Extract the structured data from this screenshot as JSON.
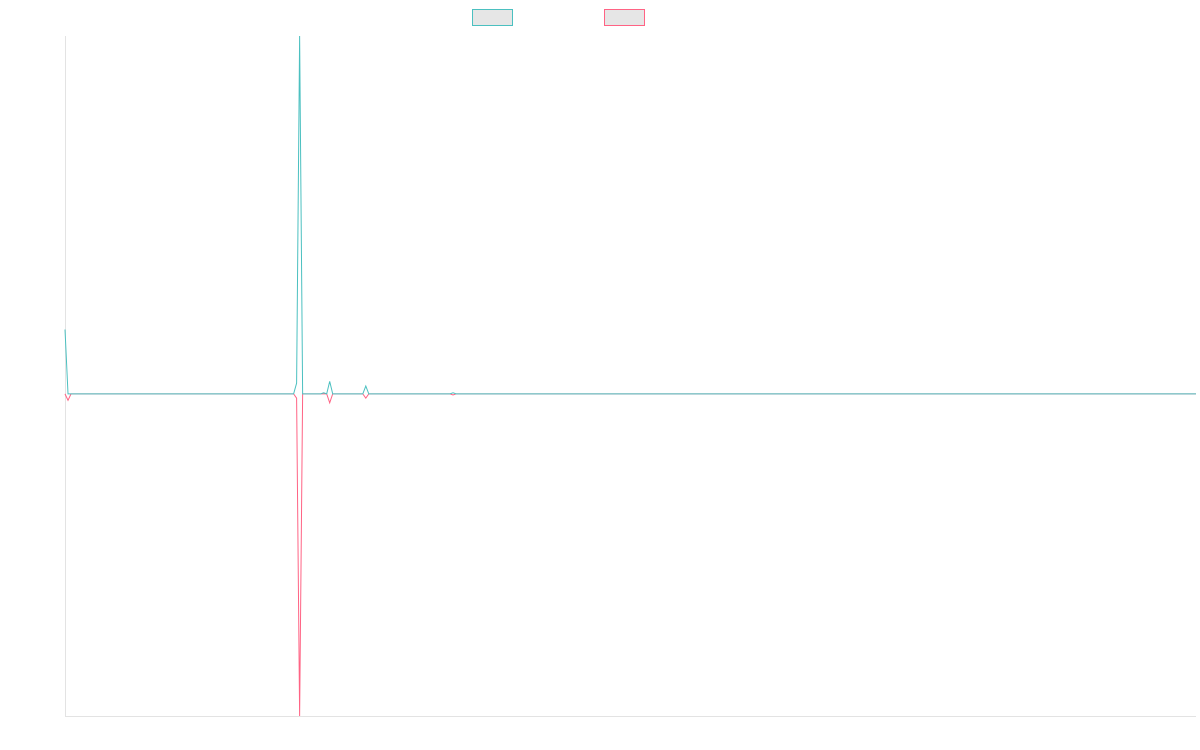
{
  "chart_data": {
    "type": "line",
    "title": "",
    "xlabel": "",
    "ylabel": "",
    "grid": false,
    "legend_position": "top-center",
    "x": [
      0,
      1,
      2,
      3,
      4,
      5,
      6,
      7,
      8,
      9,
      10,
      11,
      12,
      13,
      14,
      15,
      16,
      17,
      18,
      19,
      20,
      21,
      22,
      23,
      24,
      25,
      26,
      27,
      28,
      29,
      30,
      31,
      32,
      33,
      34,
      35,
      36,
      37,
      38,
      39,
      40,
      41,
      42,
      43,
      44,
      45,
      46,
      47,
      48,
      49,
      50,
      51,
      52,
      53,
      54,
      55,
      56,
      57,
      58,
      59,
      60,
      61,
      62,
      63,
      64,
      65,
      66,
      67,
      68,
      69,
      70,
      71,
      72,
      73,
      74,
      75,
      76,
      77,
      78,
      79,
      80,
      81,
      82,
      83,
      84,
      85,
      86,
      87,
      88,
      89,
      90,
      91,
      92,
      93,
      94,
      95,
      96,
      97,
      98,
      99,
      100,
      101,
      102,
      103,
      104,
      105,
      106,
      107,
      108,
      109,
      110,
      111,
      112,
      113,
      114,
      115,
      116,
      117,
      118,
      119,
      120,
      121,
      122,
      123,
      124,
      125,
      126,
      127,
      128,
      129,
      130,
      131,
      132,
      133,
      134,
      135,
      136,
      137,
      138,
      139,
      140,
      141,
      142,
      143,
      144,
      145,
      146,
      147,
      148,
      149,
      150,
      151,
      152,
      153,
      154,
      155,
      156,
      157,
      158,
      159,
      160,
      161,
      162,
      163,
      164,
      165,
      166,
      167,
      168,
      169,
      170,
      171,
      172,
      173,
      174,
      175,
      176,
      177,
      178,
      179,
      180,
      181,
      182,
      183,
      184,
      185,
      186,
      187,
      188,
      189,
      190,
      191,
      192,
      193,
      194,
      195,
      196,
      197,
      198,
      199,
      200,
      201,
      202,
      203,
      204,
      205,
      206,
      207,
      208,
      209,
      210,
      211,
      212,
      213,
      214,
      215,
      216,
      217,
      218,
      219,
      220,
      221,
      222,
      223,
      224,
      225,
      226,
      227,
      228,
      229,
      230,
      231,
      232,
      233,
      234,
      235,
      236,
      237,
      238,
      239,
      240,
      241,
      242,
      243,
      244,
      245,
      246,
      247,
      248,
      249,
      250,
      251,
      252,
      253,
      254,
      255,
      256,
      257,
      258,
      259,
      260,
      261,
      262,
      263,
      264,
      265,
      266,
      267,
      268,
      269,
      270,
      271,
      272,
      273,
      274,
      275,
      276,
      277,
      278,
      279,
      280,
      281,
      282,
      283,
      284,
      285,
      286,
      287,
      288,
      289,
      290,
      291,
      292,
      293,
      294,
      295,
      296,
      297,
      298,
      299,
      300,
      301,
      302,
      303,
      304,
      305,
      306,
      307,
      308,
      309,
      310,
      311,
      312,
      313,
      314,
      315,
      316,
      317,
      318,
      319,
      320,
      321,
      322,
      323,
      324,
      325,
      326,
      327,
      328,
      329,
      330,
      331,
      332,
      333,
      334,
      335,
      336,
      337,
      338,
      339,
      340,
      341,
      342,
      343,
      344,
      345,
      346,
      347,
      348,
      349,
      350,
      351,
      352,
      353,
      354,
      355,
      356,
      357,
      358,
      359,
      360,
      361,
      362,
      363,
      364,
      365,
      366,
      367,
      368,
      369,
      370,
      371,
      372,
      373,
      374,
      375,
      376
    ],
    "xlim": [
      0,
      376
    ],
    "ylim": [
      -0.9,
      1.0
    ],
    "series": [
      {
        "name": "",
        "color": "#4bc0c0",
        "points": [
          [
            0,
            0.18
          ],
          [
            1,
            0.0
          ],
          [
            76,
            0.0
          ],
          [
            77,
            0.03
          ],
          [
            78,
            1.0
          ],
          [
            79,
            0.0
          ],
          [
            85,
            0.0
          ],
          [
            86,
            0.003
          ],
          [
            87,
            0.0
          ],
          [
            88,
            0.035
          ],
          [
            89,
            0.0
          ],
          [
            99,
            0.0
          ],
          [
            100,
            0.022
          ],
          [
            101,
            0.0
          ],
          [
            128,
            0.0
          ],
          [
            129,
            0.003
          ],
          [
            130,
            0.0
          ],
          [
            376,
            0.0
          ]
        ]
      },
      {
        "name": "",
        "color": "#ff6384",
        "points": [
          [
            0,
            0.0
          ],
          [
            1,
            -0.018
          ],
          [
            2,
            0.0
          ],
          [
            76,
            0.0
          ],
          [
            77,
            -0.012
          ],
          [
            78,
            -0.9
          ],
          [
            79,
            0.0
          ],
          [
            87,
            0.0
          ],
          [
            88,
            -0.025
          ],
          [
            89,
            0.0
          ],
          [
            99,
            0.0
          ],
          [
            100,
            -0.012
          ],
          [
            101,
            0.0
          ],
          [
            128,
            0.0
          ],
          [
            129,
            -0.003
          ],
          [
            130,
            0.0
          ],
          [
            376,
            0.0
          ]
        ]
      }
    ]
  }
}
